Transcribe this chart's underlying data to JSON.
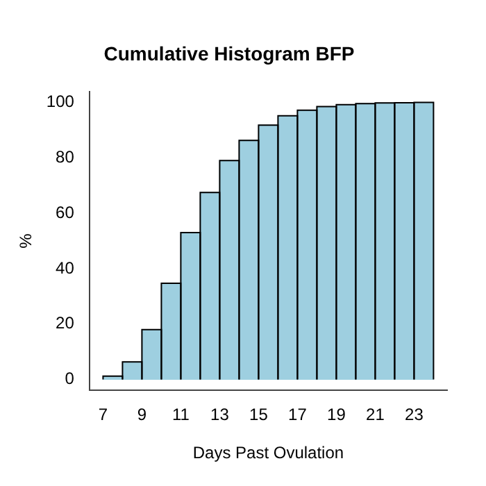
{
  "chart_data": {
    "type": "histogram",
    "title": "Cumulative Histogram BFP",
    "xlabel": "Days Past Ovulation",
    "ylabel": "%",
    "bins": [
      7,
      8,
      9,
      10,
      11,
      12,
      13,
      14,
      15,
      16,
      17,
      18,
      19,
      20,
      21,
      22,
      23,
      24
    ],
    "values": [
      1.2,
      6.3,
      18,
      34.7,
      53,
      67.5,
      79,
      86.3,
      91.8,
      95.2,
      97.2,
      98.5,
      99.2,
      99.6,
      99.8,
      99.9,
      100
    ],
    "color": "#9ecfe0",
    "xlim": [
      6.3,
      24.7
    ],
    "xticks": [
      7,
      9,
      11,
      13,
      15,
      17,
      19,
      21,
      23
    ],
    "ylim": [
      -4,
      104
    ],
    "yticks": [
      0,
      20,
      40,
      60,
      80,
      100
    ],
    "grid": false
  }
}
